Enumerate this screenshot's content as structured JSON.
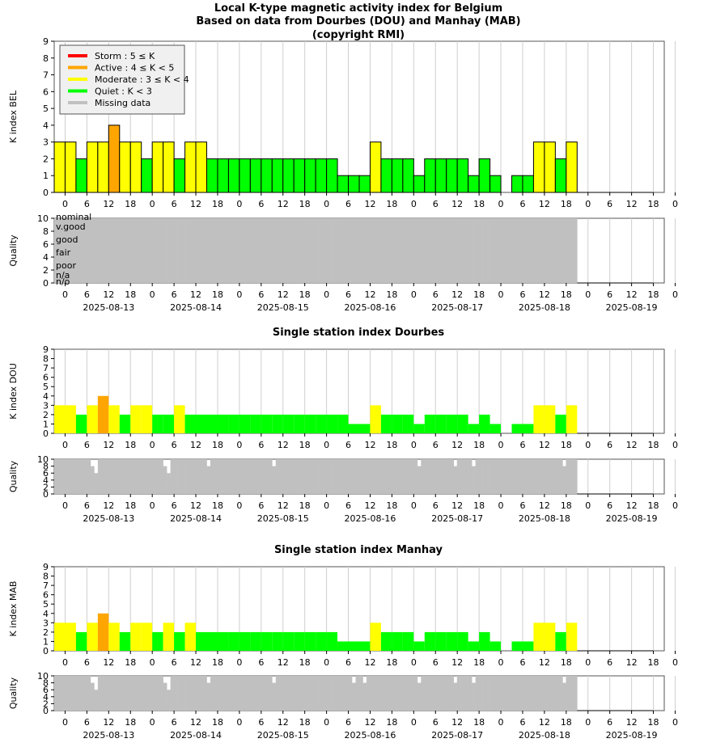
{
  "titles": {
    "main": [
      "Local K-type magnetic activity index for Belgium",
      "Based on data from Dourbes (DOU) and Manhay (MAB)",
      "(copyright RMI)"
    ],
    "dou": "Single station index Dourbes",
    "mab": "Single station index Manhay"
  },
  "legend": [
    {
      "label": "Storm : 5 ≤ K",
      "color": "#ff0000"
    },
    {
      "label": "Active : 4 ≤ K < 5",
      "color": "#ffa500"
    },
    {
      "label": "Moderate : 3 ≤ K < 4",
      "color": "#ffff00"
    },
    {
      "label": "Quiet : K < 3",
      "color": "#00ff00"
    },
    {
      "label": "Missing data",
      "color": "#c0c0c0"
    }
  ],
  "axes": {
    "k_ylabels": [
      "K index BEL",
      "K index DOU",
      "K index MAB"
    ],
    "quality_ylabel": "Quality",
    "hour_ticks": [
      "0",
      "6",
      "12",
      "18",
      "0",
      "6",
      "12",
      "18",
      "0",
      "6",
      "12",
      "18",
      "0",
      "6",
      "12",
      "18",
      "0",
      "6",
      "12",
      "18",
      "0",
      "6",
      "12",
      "18",
      "0",
      "6",
      "12",
      "18",
      "0"
    ],
    "date_labels": [
      "2025-08-13",
      "2025-08-14",
      "2025-08-15",
      "2025-08-16",
      "2025-08-17",
      "2025-08-18",
      "2025-08-19"
    ],
    "k_ylim": [
      0,
      9
    ],
    "quality_ylim": [
      0,
      10
    ],
    "k_yticks": [
      "0",
      "1",
      "2",
      "3",
      "4",
      "5",
      "6",
      "7",
      "8",
      "9"
    ],
    "quality_yticks": [
      "0",
      "2",
      "4",
      "6",
      "8",
      "10"
    ],
    "quality_levels": [
      "nominal",
      "v.good",
      "good",
      "fair",
      "poor",
      "n/a",
      "n/o"
    ]
  },
  "chart_data": [
    {
      "type": "bar",
      "name": "Belgium",
      "xrange": [
        "2025-08-12 21:00",
        "2025-08-19 21:00"
      ],
      "bin_hours": 3,
      "first_bin": "2025-08-12 21:00",
      "k_values": [
        3,
        3,
        2,
        3,
        3,
        4,
        3,
        3,
        2,
        3,
        3,
        2,
        3,
        3,
        2,
        2,
        2,
        2,
        2,
        2,
        2,
        2,
        2,
        2,
        2,
        2,
        1,
        1,
        1,
        3,
        2,
        2,
        2,
        1,
        2,
        2,
        2,
        2,
        1,
        2,
        1,
        0,
        1,
        1,
        3,
        3,
        2,
        3
      ],
      "k_dou": [
        3,
        3,
        2,
        3,
        4,
        3,
        2,
        3,
        3,
        2,
        2,
        3,
        2,
        2,
        2,
        2,
        2,
        2,
        2,
        2,
        2,
        2,
        2,
        2,
        2,
        2,
        2,
        1,
        1,
        3,
        2,
        2,
        2,
        1,
        2,
        2,
        2,
        2,
        1,
        2,
        1,
        0,
        1,
        1,
        3,
        3,
        2,
        3
      ],
      "k_mab": [
        3,
        3,
        2,
        3,
        4,
        3,
        2,
        3,
        3,
        2,
        3,
        2,
        3,
        2,
        2,
        2,
        2,
        2,
        2,
        2,
        2,
        2,
        2,
        2,
        2,
        2,
        1,
        1,
        1,
        3,
        2,
        2,
        2,
        1,
        2,
        2,
        2,
        2,
        1,
        2,
        1,
        0,
        1,
        1,
        3,
        3,
        2,
        3
      ],
      "quality_combined": 10,
      "quality_dou_full": 10,
      "quality_mab_full": 10
    }
  ]
}
